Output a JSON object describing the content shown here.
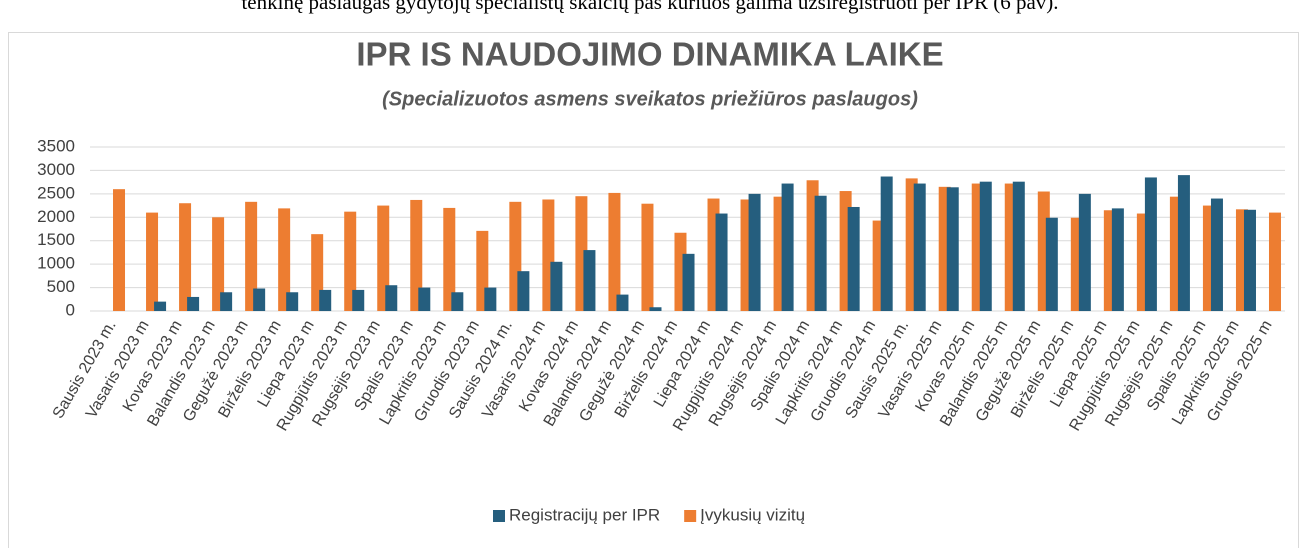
{
  "text_above": "tenkinę paslaugas gydytojų specialistų skaičių pas kuriuos galima užsiregistruoti per IPR (6 pav).",
  "chart_data": {
    "type": "bar",
    "title": "IPR IS NAUDOJIMO DINAMIKA LAIKE",
    "subtitle": "(Specializuotos asmens sveikatos priežiūros paslaugos)",
    "categories": [
      "Sausis 2023 m.",
      "Vasaris 2023 m",
      "Kovas 2023 m",
      "Balandis 2023 m",
      "Gegužė 2023 m",
      "Birželis 2023 m",
      "Liepa 2023 m",
      "Rugpjūtis 2023 m",
      "Rugsėjis 2023 m",
      "Spalis 2023 m",
      "Lapkritis 2023 m",
      "Gruodis 2023 m",
      "Sausis 2024 m.",
      "Vasaris 2024 m",
      "Kovas 2024 m",
      "Balandis 2024 m",
      "Gegužė 2024 m",
      "Birželis 2024 m",
      "Liepa 2024 m",
      "Rugpjūtis 2024 m",
      "Rugsėjis 2024 m",
      "Spalis 2024 m",
      "Lapkritis 2024 m",
      "Gruodis 2024 m",
      "Sausis 2025 m.",
      "Vasaris 2025 m",
      "Kovas 2025 m",
      "Balandis 2025 m",
      "Gegužė 2025 m",
      "Birželis 2025 m",
      "Liepa 2025 m",
      "Rugpjūtis 2025 m",
      "Rugsėjis 2025 m",
      "Spalis 2025 m",
      "Lapkritis 2025 m",
      "Gruodis 2025 m"
    ],
    "series": [
      {
        "name": "Registracijų per IPR",
        "color": "#255e7e",
        "values": [
          0,
          0,
          200,
          300,
          400,
          480,
          400,
          450,
          450,
          550,
          500,
          400,
          500,
          850,
          1050,
          1300,
          350,
          80,
          1220,
          2080,
          2500,
          2720,
          2460,
          2220,
          2870,
          2720,
          2640,
          2760,
          2760,
          1990,
          2500,
          2190,
          2850,
          2900,
          2400,
          2160
        ]
      },
      {
        "name": "Įvykusių vizitų",
        "color": "#ed7d31",
        "values": [
          2600,
          2100,
          2300,
          2000,
          2330,
          2190,
          1640,
          2120,
          2250,
          2370,
          2200,
          1710,
          2330,
          2380,
          2450,
          2520,
          2290,
          1670,
          2400,
          2380,
          2440,
          2790,
          2560,
          1930,
          2830,
          2650,
          2720,
          2720,
          2550,
          1990,
          2150,
          2080,
          2440,
          2250,
          2170,
          2100
        ]
      }
    ],
    "ylim": [
      0,
      3500
    ],
    "yticks": [
      0,
      500,
      1000,
      1500,
      2000,
      2500,
      3000,
      3500
    ],
    "grid": true,
    "legend": "bottom"
  }
}
